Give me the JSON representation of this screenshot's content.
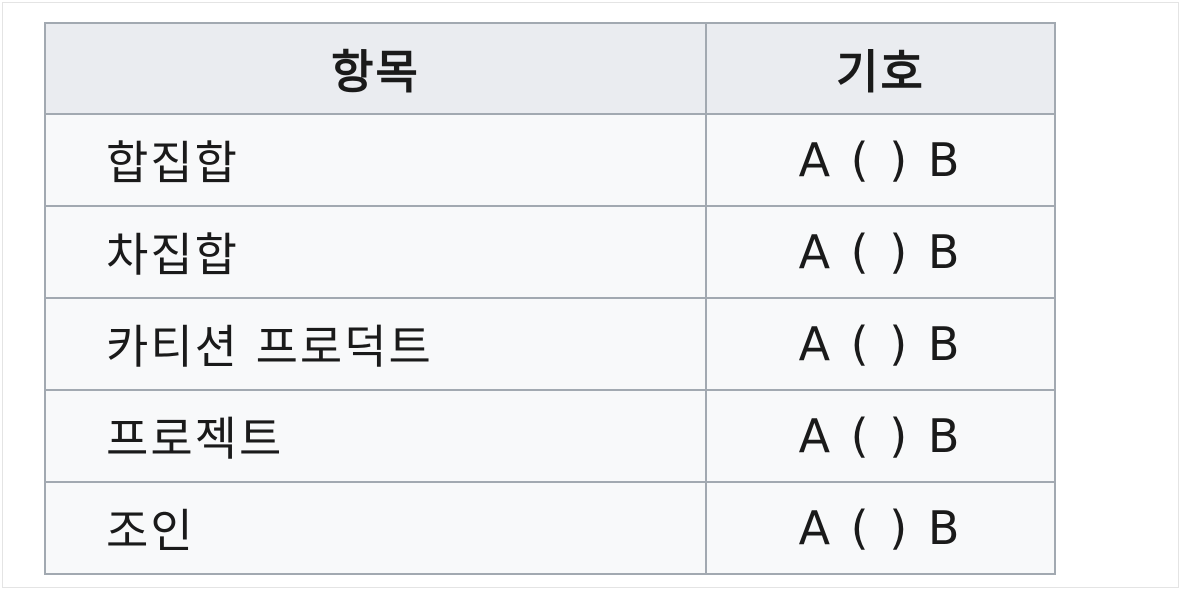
{
  "table": {
    "headers": {
      "item": "항목",
      "symbol": "기호"
    },
    "rows": [
      {
        "item": "합집합",
        "symbol": "A ( ) B"
      },
      {
        "item": "차집합",
        "symbol": "A ( ) B"
      },
      {
        "item": "카티션 프로덕트",
        "symbol": "A ( ) B"
      },
      {
        "item": "프로젝트",
        "symbol": "A ( ) B"
      },
      {
        "item": "조인",
        "symbol": "A ( ) B"
      }
    ]
  }
}
